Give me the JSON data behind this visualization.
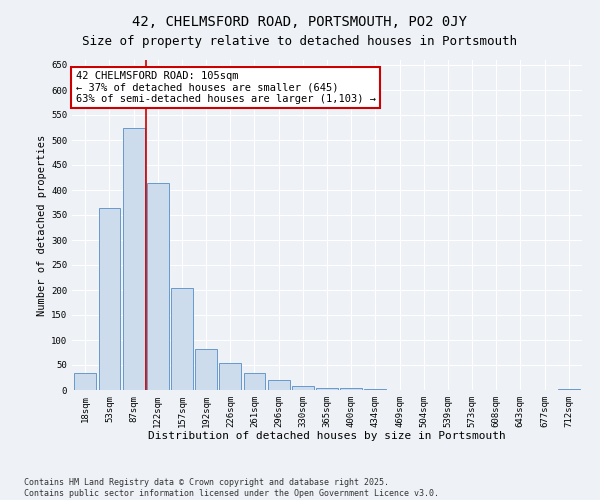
{
  "title": "42, CHELMSFORD ROAD, PORTSMOUTH, PO2 0JY",
  "subtitle": "Size of property relative to detached houses in Portsmouth",
  "xlabel": "Distribution of detached houses by size in Portsmouth",
  "ylabel": "Number of detached properties",
  "bar_labels": [
    "18sqm",
    "53sqm",
    "87sqm",
    "122sqm",
    "157sqm",
    "192sqm",
    "226sqm",
    "261sqm",
    "296sqm",
    "330sqm",
    "365sqm",
    "400sqm",
    "434sqm",
    "469sqm",
    "504sqm",
    "539sqm",
    "573sqm",
    "608sqm",
    "643sqm",
    "677sqm",
    "712sqm"
  ],
  "bar_values": [
    35,
    365,
    525,
    415,
    205,
    82,
    55,
    35,
    20,
    8,
    5,
    5,
    2,
    0,
    0,
    0,
    0,
    0,
    0,
    0,
    2
  ],
  "bar_color": "#ccdcec",
  "bar_edge_color": "#6699cc",
  "vline_color": "#cc0000",
  "vline_x_idx": 2.5,
  "annotation_text": "42 CHELMSFORD ROAD: 105sqm\n← 37% of detached houses are smaller (645)\n63% of semi-detached houses are larger (1,103) →",
  "annotation_box_facecolor": "#ffffff",
  "annotation_box_edgecolor": "#cc0000",
  "ylim": [
    0,
    660
  ],
  "yticks": [
    0,
    50,
    100,
    150,
    200,
    250,
    300,
    350,
    400,
    450,
    500,
    550,
    600,
    650
  ],
  "footnote": "Contains HM Land Registry data © Crown copyright and database right 2025.\nContains public sector information licensed under the Open Government Licence v3.0.",
  "bg_color": "#eef2f7",
  "grid_color": "#ffffff",
  "title_fontsize": 10,
  "subtitle_fontsize": 9,
  "xlabel_fontsize": 8,
  "ylabel_fontsize": 7.5,
  "tick_fontsize": 6.5,
  "annot_fontsize": 7.5,
  "footnote_fontsize": 6
}
